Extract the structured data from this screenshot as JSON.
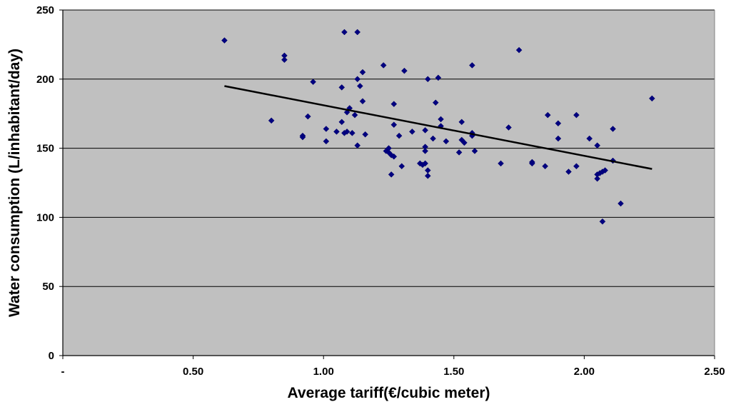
{
  "chart_data": {
    "type": "scatter",
    "title": "",
    "xlabel": "Average tariff(€/cubic meter)",
    "ylabel": "Water consumption (L/inhabitant/day)",
    "xlim": [
      0,
      2.5
    ],
    "ylim": [
      0,
      250
    ],
    "x_ticks": [
      "-",
      "0.50",
      "1.00",
      "1.50",
      "2.00",
      "2.50"
    ],
    "y_ticks": [
      "0",
      "50",
      "100",
      "150",
      "200",
      "250"
    ],
    "grid": "horizontal",
    "legend": "none",
    "colors": {
      "plot_background": "#c0c0c0",
      "point": "#000080",
      "trendline": "#000000",
      "grid": "#000000"
    },
    "trendline": {
      "x": [
        0.62,
        2.26
      ],
      "y": [
        195,
        135
      ]
    },
    "points": [
      [
        0.62,
        228
      ],
      [
        0.8,
        170
      ],
      [
        0.85,
        217
      ],
      [
        0.85,
        214
      ],
      [
        0.92,
        159
      ],
      [
        0.92,
        158
      ],
      [
        0.94,
        173
      ],
      [
        0.96,
        198
      ],
      [
        1.01,
        164
      ],
      [
        1.01,
        155
      ],
      [
        1.05,
        162
      ],
      [
        1.07,
        194
      ],
      [
        1.07,
        169
      ],
      [
        1.08,
        234
      ],
      [
        1.08,
        161
      ],
      [
        1.09,
        176
      ],
      [
        1.09,
        162
      ],
      [
        1.1,
        179
      ],
      [
        1.11,
        161
      ],
      [
        1.12,
        174
      ],
      [
        1.13,
        234
      ],
      [
        1.13,
        200
      ],
      [
        1.13,
        152
      ],
      [
        1.14,
        195
      ],
      [
        1.15,
        184
      ],
      [
        1.15,
        205
      ],
      [
        1.16,
        160
      ],
      [
        1.23,
        210
      ],
      [
        1.24,
        148
      ],
      [
        1.25,
        147
      ],
      [
        1.25,
        150
      ],
      [
        1.26,
        145
      ],
      [
        1.26,
        131
      ],
      [
        1.27,
        182
      ],
      [
        1.27,
        167
      ],
      [
        1.27,
        144
      ],
      [
        1.29,
        159
      ],
      [
        1.3,
        137
      ],
      [
        1.31,
        206
      ],
      [
        1.34,
        162
      ],
      [
        1.37,
        139
      ],
      [
        1.38,
        138
      ],
      [
        1.39,
        163
      ],
      [
        1.39,
        151
      ],
      [
        1.39,
        148
      ],
      [
        1.39,
        139
      ],
      [
        1.4,
        134
      ],
      [
        1.4,
        130
      ],
      [
        1.4,
        200
      ],
      [
        1.42,
        157
      ],
      [
        1.43,
        183
      ],
      [
        1.44,
        201
      ],
      [
        1.45,
        166
      ],
      [
        1.45,
        171
      ],
      [
        1.47,
        155
      ],
      [
        1.52,
        147
      ],
      [
        1.53,
        156
      ],
      [
        1.53,
        169
      ],
      [
        1.54,
        154
      ],
      [
        1.57,
        210
      ],
      [
        1.57,
        161
      ],
      [
        1.57,
        159
      ],
      [
        1.58,
        148
      ],
      [
        1.68,
        139
      ],
      [
        1.71,
        165
      ],
      [
        1.75,
        221
      ],
      [
        1.8,
        140
      ],
      [
        1.8,
        139
      ],
      [
        1.85,
        137
      ],
      [
        1.86,
        174
      ],
      [
        1.9,
        168
      ],
      [
        1.9,
        157
      ],
      [
        1.94,
        133
      ],
      [
        1.97,
        174
      ],
      [
        1.97,
        137
      ],
      [
        2.02,
        157
      ],
      [
        2.05,
        152
      ],
      [
        2.05,
        131
      ],
      [
        2.05,
        128
      ],
      [
        2.06,
        132
      ],
      [
        2.07,
        133
      ],
      [
        2.07,
        97
      ],
      [
        2.08,
        134
      ],
      [
        2.11,
        164
      ],
      [
        2.11,
        141
      ],
      [
        2.14,
        110
      ],
      [
        2.26,
        186
      ]
    ]
  }
}
